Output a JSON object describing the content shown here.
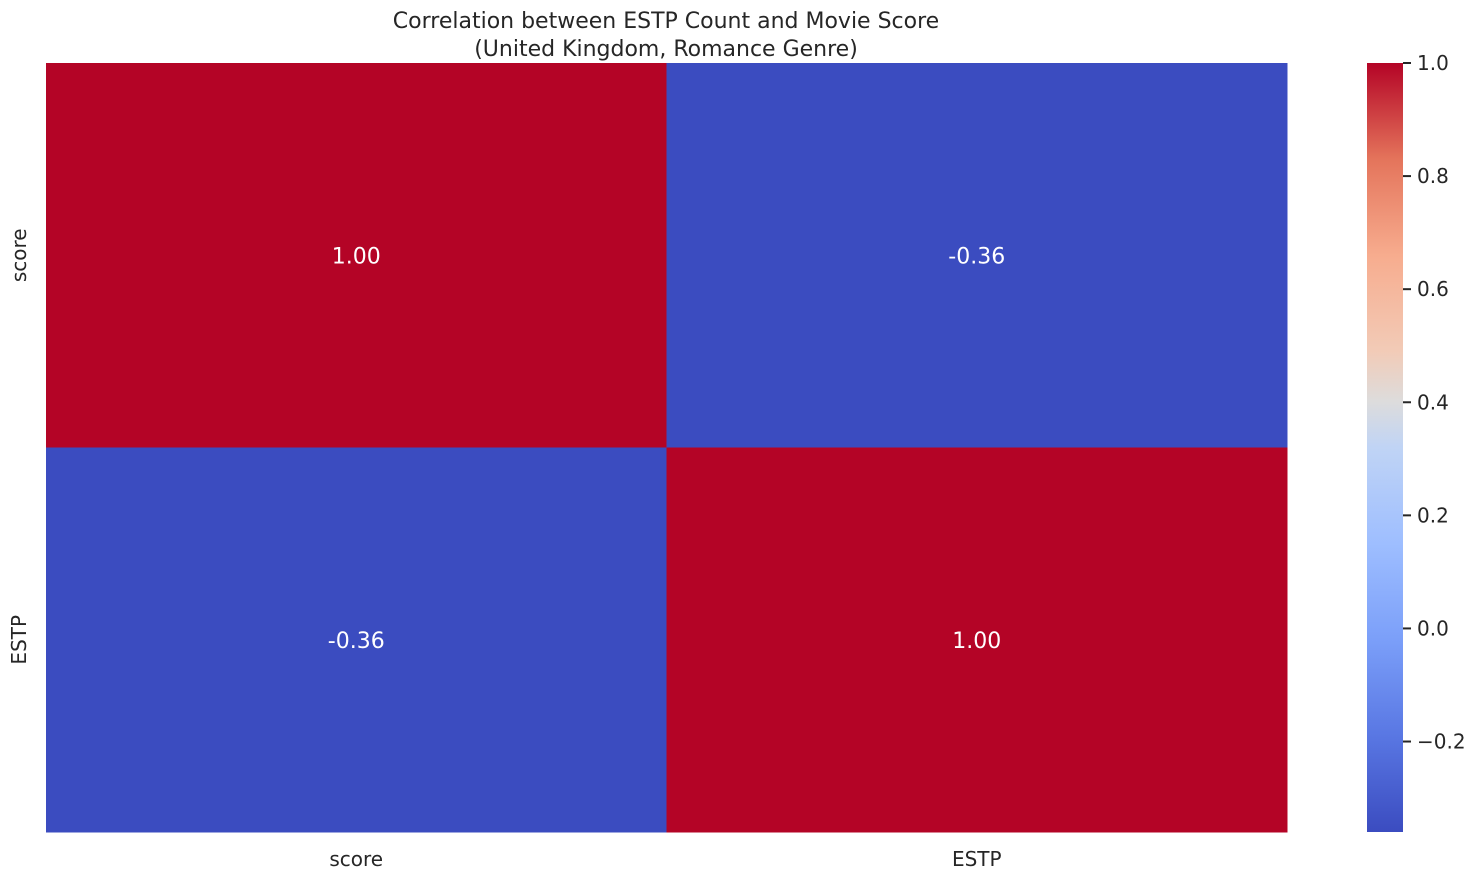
{
  "chart_data": {
    "type": "heatmap",
    "title_line1": "Correlation between ESTP Count and Movie Score",
    "title_line2": "(United Kingdom, Romance Genre)",
    "x_categories": [
      "score",
      "ESTP"
    ],
    "y_categories": [
      "score",
      "ESTP"
    ],
    "values": [
      [
        1.0,
        -0.36
      ],
      [
        -0.36,
        1.0
      ]
    ],
    "value_labels": [
      [
        "1.00",
        "-0.36"
      ],
      [
        "-0.36",
        "1.00"
      ]
    ],
    "colormap": "coolwarm",
    "vmin": -0.36,
    "vmax": 1.0,
    "colorbar_ticks": [
      -0.2,
      0.0,
      0.2,
      0.4,
      0.6,
      0.8,
      1.0
    ],
    "colorbar_tick_labels": [
      "−0.2",
      "0.0",
      "0.2",
      "0.4",
      "0.6",
      "0.8",
      "1.0"
    ],
    "colors": {
      "high": "#b40426",
      "low": "#3b4cc0"
    }
  }
}
